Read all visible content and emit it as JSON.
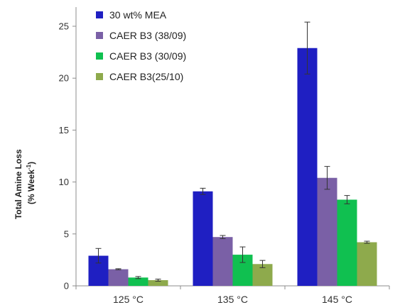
{
  "chart_data": {
    "type": "bar",
    "title": "",
    "xlabel": "",
    "ylabel_lines": [
      "Total Amine Loss",
      "(% Week",
      "-1",
      ")"
    ],
    "ylim": [
      0,
      25
    ],
    "yticks": [
      "0",
      "5",
      "10",
      "15",
      "20",
      "25"
    ],
    "categories": [
      "125 °C",
      "135 °C",
      "145 °C"
    ],
    "grid": false,
    "legend_position": "top-left",
    "series": [
      {
        "name": "30 wt% MEA",
        "color": "#1f1fc2",
        "values": [
          2.9,
          9.1,
          22.9
        ],
        "errors": [
          0.7,
          0.3,
          2.5
        ]
      },
      {
        "name": "CAER B3 (38/09)",
        "color": "#7a60a6",
        "values": [
          1.6,
          4.7,
          10.4
        ],
        "errors": [
          0.05,
          0.15,
          1.1
        ]
      },
      {
        "name": "CAER B3 (30/09)",
        "color": "#10c050",
        "values": [
          0.8,
          3.0,
          8.3
        ],
        "errors": [
          0.1,
          0.75,
          0.4
        ]
      },
      {
        "name": "CAER B3(25/10)",
        "color": "#8eaa4c",
        "values": [
          0.55,
          2.1,
          4.2
        ],
        "errors": [
          0.1,
          0.35,
          0.1
        ]
      }
    ]
  }
}
